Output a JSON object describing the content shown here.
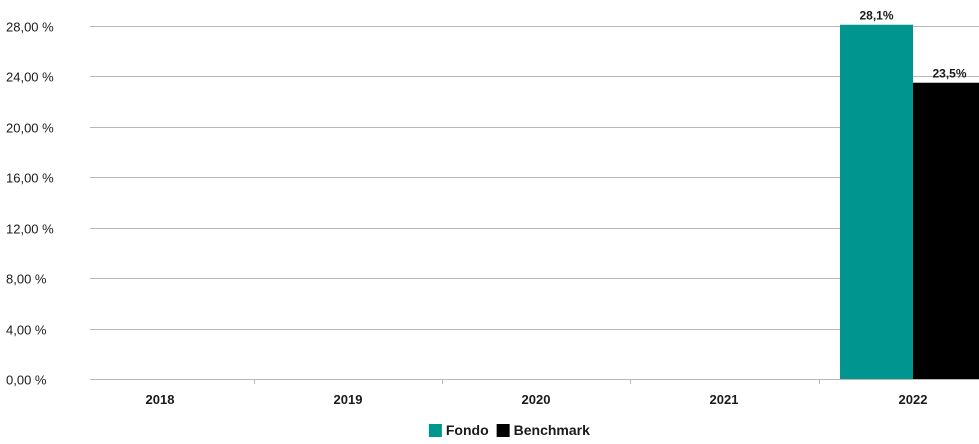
{
  "chart_data": {
    "type": "bar",
    "categories": [
      "2018",
      "2019",
      "2020",
      "2021",
      "2022"
    ],
    "series": [
      {
        "name": "Fondo",
        "color": "#00968f",
        "values": [
          null,
          null,
          null,
          null,
          28.1
        ]
      },
      {
        "name": "Benchmark",
        "color": "#000000",
        "values": [
          null,
          null,
          null,
          null,
          23.5
        ]
      }
    ],
    "data_labels": [
      {
        "series": 0,
        "category": 4,
        "text": "28,1%"
      },
      {
        "series": 1,
        "category": 4,
        "text": "23,5%"
      }
    ],
    "ylim": [
      0,
      28
    ],
    "yticks": [
      0,
      4,
      8,
      12,
      16,
      20,
      24,
      28
    ],
    "ytick_labels": [
      "0,00 %",
      "4,00 %",
      "8,00 %",
      "12,00 %",
      "16,00 %",
      "20,00 %",
      "24,00 %",
      "28,00 %"
    ],
    "grid": true,
    "legend_position": "bottom-center",
    "title": "",
    "xlabel": "",
    "ylabel": ""
  }
}
